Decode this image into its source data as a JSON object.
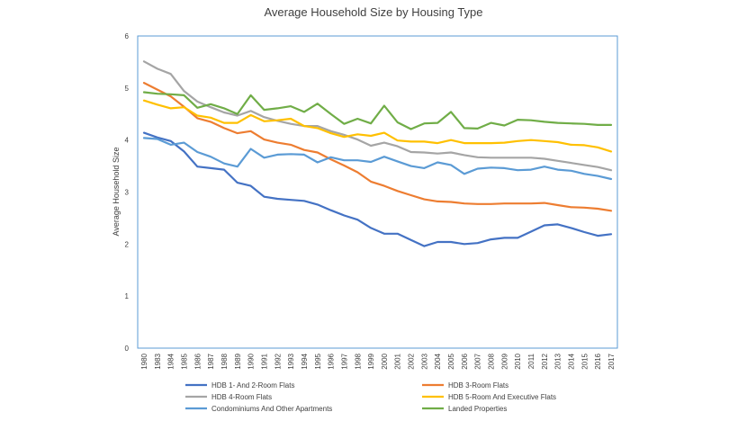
{
  "chart_data": {
    "type": "line",
    "title": "Average Household Size by Housing Type",
    "xlabel": "",
    "ylabel": "Average Household Size",
    "ylim": [
      0,
      6
    ],
    "yticks": [
      0,
      1,
      2,
      3,
      4,
      5,
      6
    ],
    "grid": false,
    "legend_position": "bottom",
    "categories": [
      "1980",
      "1983",
      "1984",
      "1985",
      "1986",
      "1987",
      "1988",
      "1989",
      "1990",
      "1991",
      "1992",
      "1993",
      "1994",
      "1995",
      "1996",
      "1997",
      "1998",
      "1999",
      "2000",
      "2001",
      "2002",
      "2003",
      "2004",
      "2005",
      "2006",
      "2007",
      "2008",
      "2009",
      "2010",
      "2011",
      "2012",
      "2013",
      "2014",
      "2015",
      "2016",
      "2017"
    ],
    "series": [
      {
        "name": "HDB 1- And 2-Room Flats",
        "color": "#4472c4",
        "values": [
          4.14,
          4.05,
          3.98,
          3.78,
          3.49,
          3.46,
          3.43,
          3.18,
          3.12,
          2.91,
          2.87,
          2.85,
          2.83,
          2.76,
          2.65,
          2.55,
          2.47,
          2.31,
          2.2,
          2.2,
          2.08,
          1.96,
          2.04,
          2.04,
          2.0,
          2.02,
          2.09,
          2.12,
          2.12,
          2.24,
          2.36,
          2.38,
          2.31,
          2.23,
          2.16,
          2.19
        ]
      },
      {
        "name": "HDB 3-Room Flats",
        "color": "#ed7d31",
        "values": [
          5.1,
          4.97,
          4.84,
          4.64,
          4.42,
          4.35,
          4.23,
          4.13,
          4.17,
          4.01,
          3.95,
          3.91,
          3.81,
          3.76,
          3.63,
          3.51,
          3.38,
          3.2,
          3.12,
          3.02,
          2.94,
          2.86,
          2.82,
          2.81,
          2.78,
          2.77,
          2.77,
          2.78,
          2.78,
          2.78,
          2.79,
          2.75,
          2.71,
          2.7,
          2.68,
          2.64
        ]
      },
      {
        "name": "HDB 4-Room Flats",
        "color": "#a5a5a5",
        "values": [
          5.51,
          5.37,
          5.27,
          4.94,
          4.74,
          4.63,
          4.53,
          4.47,
          4.56,
          4.44,
          4.37,
          4.31,
          4.27,
          4.27,
          4.17,
          4.1,
          4.01,
          3.89,
          3.95,
          3.88,
          3.77,
          3.76,
          3.74,
          3.76,
          3.71,
          3.67,
          3.66,
          3.66,
          3.66,
          3.66,
          3.64,
          3.6,
          3.56,
          3.52,
          3.48,
          3.42
        ]
      },
      {
        "name": "HDB 5-Room And Executive Flats",
        "color": "#ffc000",
        "values": [
          4.76,
          4.68,
          4.61,
          4.63,
          4.47,
          4.43,
          4.33,
          4.33,
          4.48,
          4.36,
          4.38,
          4.41,
          4.27,
          4.23,
          4.13,
          4.06,
          4.11,
          4.08,
          4.14,
          3.99,
          3.97,
          3.97,
          3.94,
          4.0,
          3.94,
          3.94,
          3.94,
          3.95,
          3.98,
          4.0,
          3.98,
          3.96,
          3.91,
          3.9,
          3.86,
          3.78
        ]
      },
      {
        "name": "Condominiums And Other Apartments",
        "color": "#5b9bd5",
        "values": [
          4.04,
          4.02,
          3.91,
          3.95,
          3.77,
          3.68,
          3.55,
          3.49,
          3.83,
          3.66,
          3.72,
          3.73,
          3.72,
          3.57,
          3.67,
          3.61,
          3.61,
          3.58,
          3.68,
          3.59,
          3.5,
          3.46,
          3.57,
          3.52,
          3.35,
          3.45,
          3.47,
          3.46,
          3.42,
          3.43,
          3.49,
          3.43,
          3.41,
          3.35,
          3.31,
          3.25
        ]
      },
      {
        "name": "Landed Properties",
        "color": "#70ad47",
        "values": [
          4.92,
          4.89,
          4.88,
          4.86,
          4.62,
          4.69,
          4.61,
          4.5,
          4.86,
          4.58,
          4.61,
          4.65,
          4.54,
          4.7,
          4.5,
          4.31,
          4.41,
          4.32,
          4.66,
          4.34,
          4.21,
          4.32,
          4.33,
          4.54,
          4.23,
          4.22,
          4.33,
          4.28,
          4.39,
          4.38,
          4.35,
          4.33,
          4.32,
          4.31,
          4.29,
          4.29
        ]
      }
    ]
  }
}
